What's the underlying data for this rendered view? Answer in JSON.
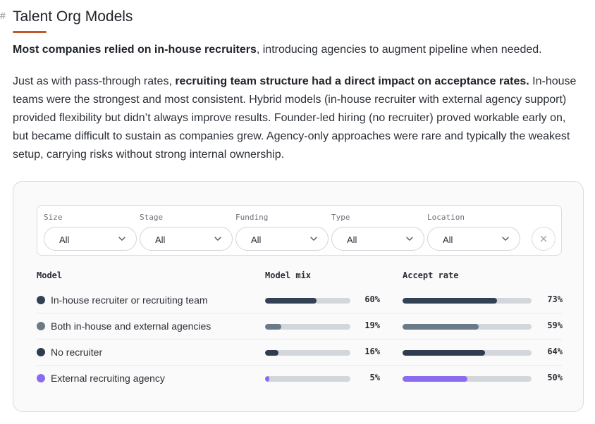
{
  "heading": {
    "hash": "#",
    "title": "Talent Org Models"
  },
  "intro": {
    "bold": "Most companies relied on in-house recruiters",
    "rest": ", introducing agencies to augment pipeline when needed."
  },
  "body": {
    "pre": "Just as with pass-through rates, ",
    "bold": "recruiting team structure had a direct impact on acceptance rates.",
    "post": " In-house teams were the strongest and most consistent. Hybrid models (in-house recruiter with external agency support) provided flexibility but didn’t always improve results. Founder-led hiring (no recruiter) proved workable early on, but became difficult to sustain as companies grew. Agency-only approaches were rare and typically the weakest setup, carrying risks without strong internal ownership."
  },
  "filters": [
    {
      "label": "Size",
      "value": "All"
    },
    {
      "label": "Stage",
      "value": "All"
    },
    {
      "label": "Funding",
      "value": "All"
    },
    {
      "label": "Type",
      "value": "All"
    },
    {
      "label": "Location",
      "value": "All"
    }
  ],
  "table": {
    "headers": {
      "model": "Model",
      "mix": "Model mix",
      "accept": "Accept rate"
    },
    "rows": [
      {
        "name": "In-house recruiter or recruiting team",
        "color": "#334155",
        "mix": 60,
        "mix_label": "60%",
        "accept": 73,
        "accept_label": "73%"
      },
      {
        "name": "Both in-house and external agencies",
        "color": "#6b7a89",
        "mix": 19,
        "mix_label": "19%",
        "accept": 59,
        "accept_label": "59%"
      },
      {
        "name": "No recruiter",
        "color": "#2f3b4e",
        "mix": 16,
        "mix_label": "16%",
        "accept": 64,
        "accept_label": "64%"
      },
      {
        "name": "External recruiting agency",
        "color": "#8b6cf0",
        "mix": 5,
        "mix_label": "5%",
        "accept": 50,
        "accept_label": "50%"
      }
    ]
  },
  "colors": {
    "accent_underline": "#c0582b",
    "track": "#d3d6db"
  }
}
